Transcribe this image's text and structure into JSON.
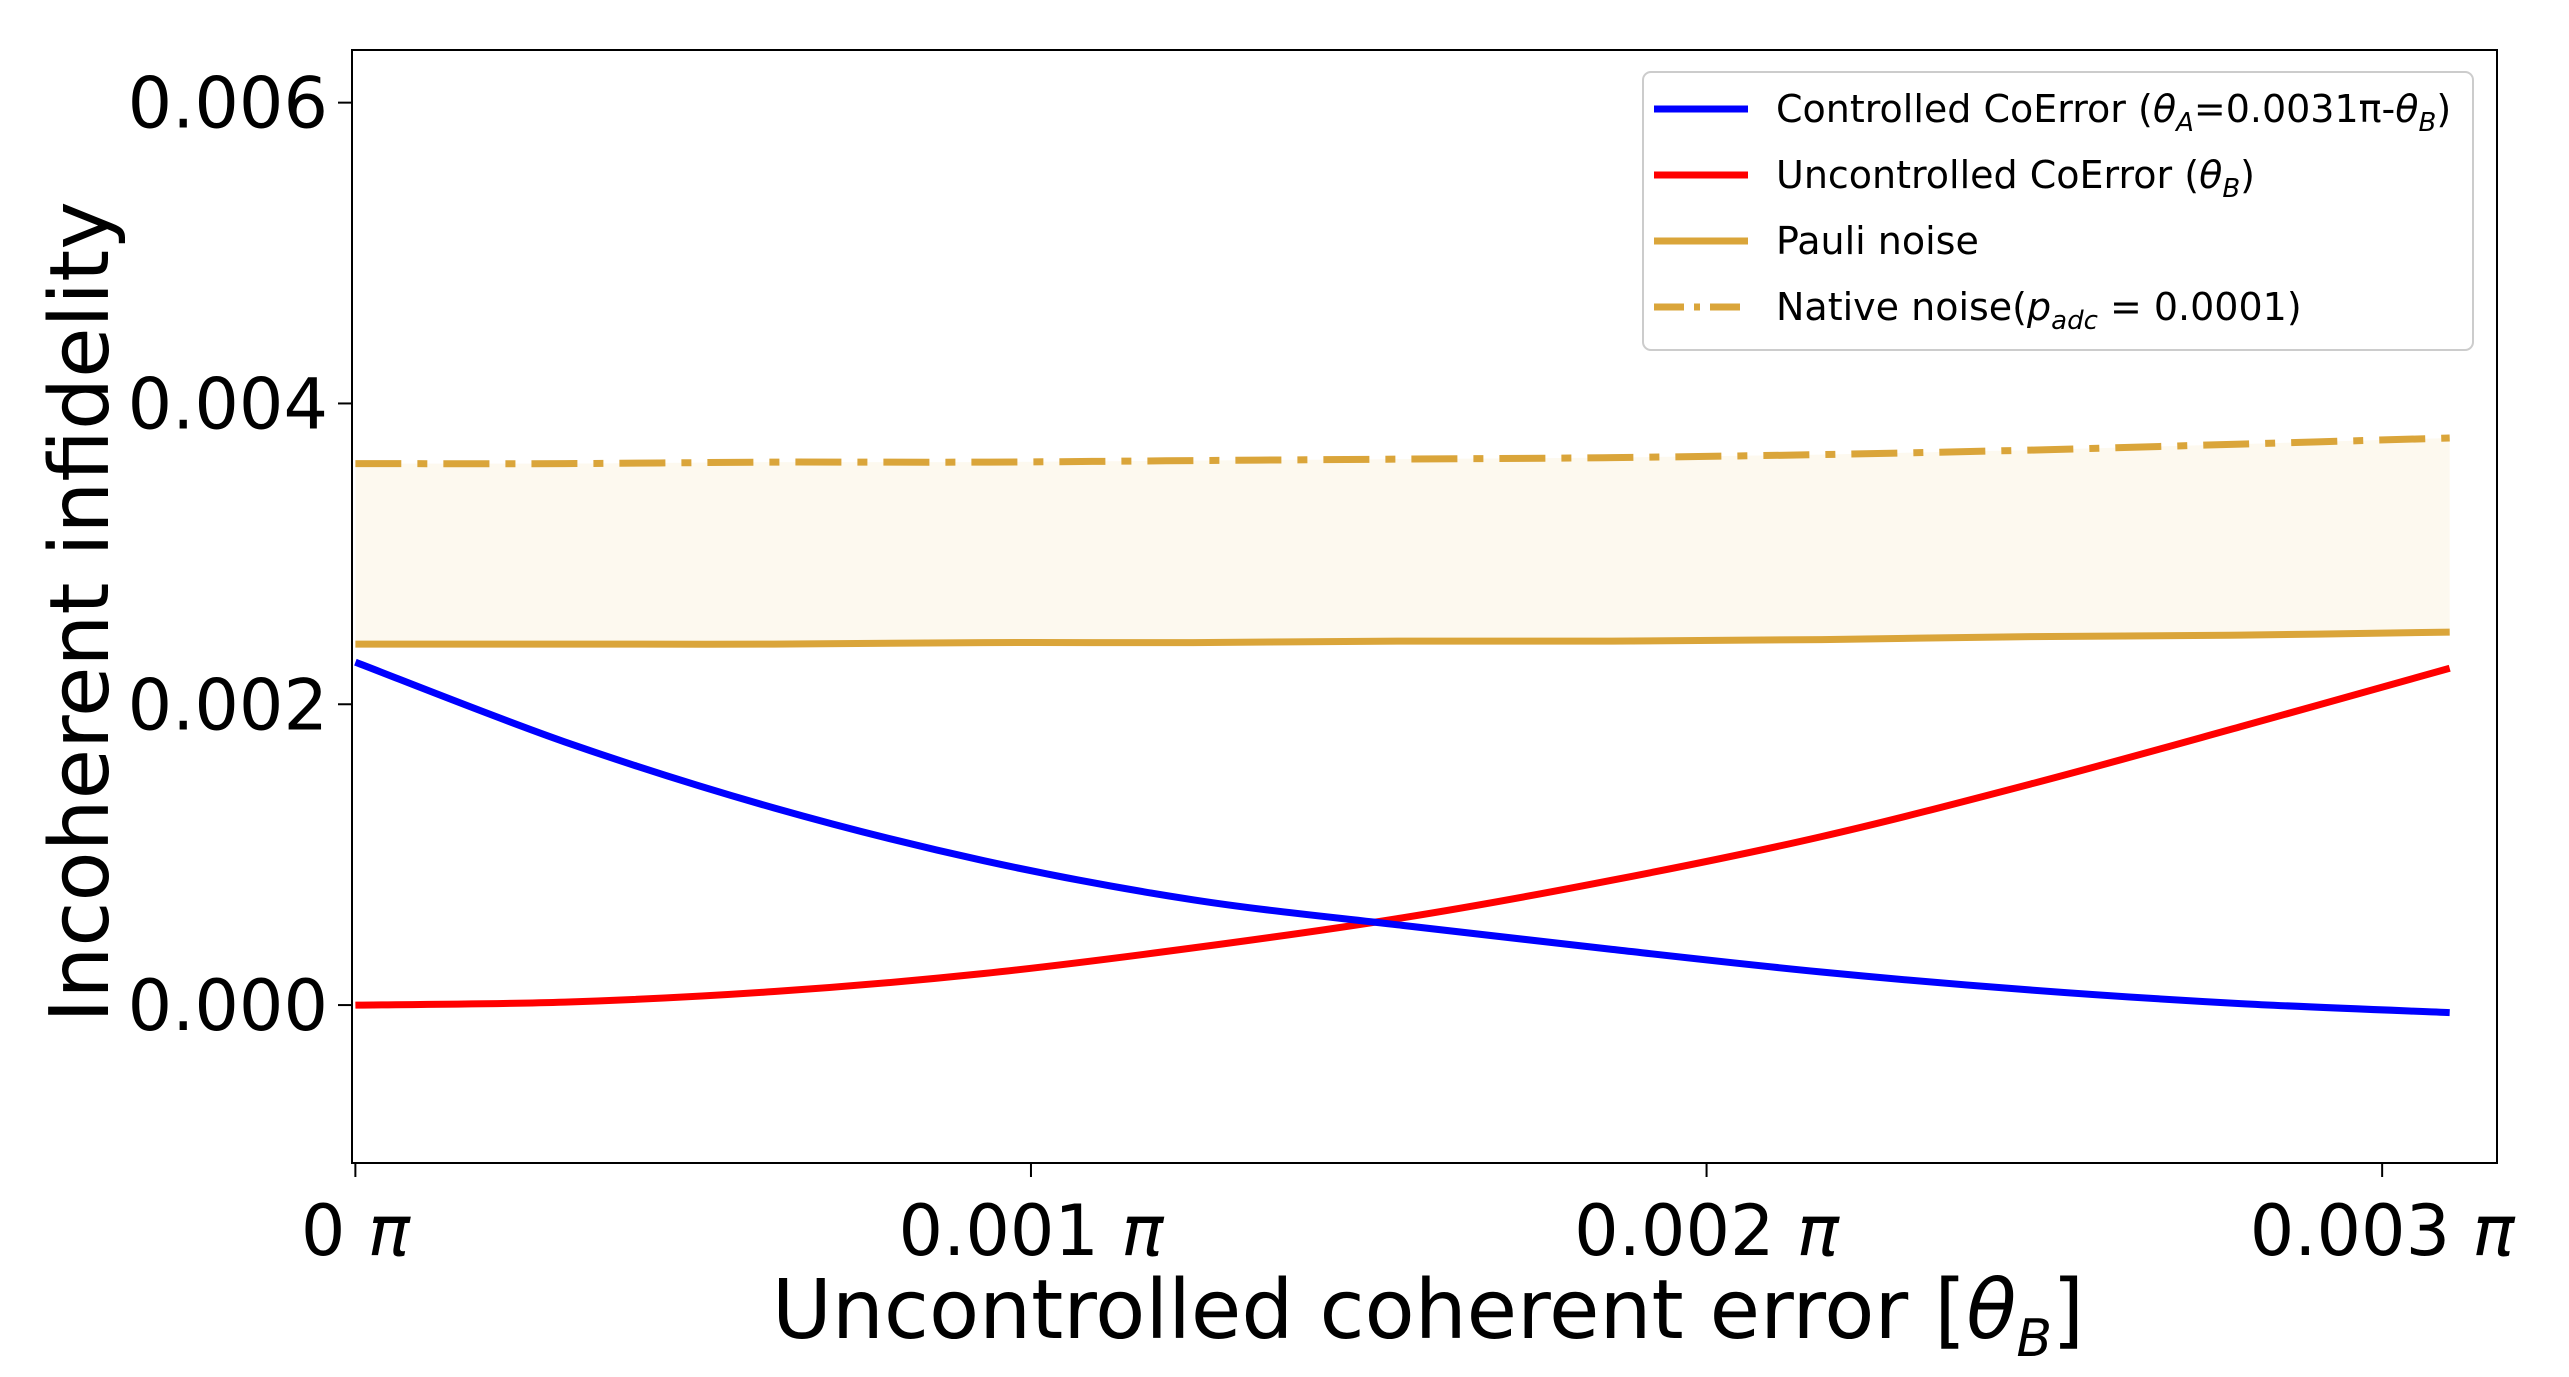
{
  "chart_data": {
    "type": "line",
    "xlabel_main": "Uncontrolled coherent error [",
    "xlabel_sym": "θ",
    "xlabel_sub": "B",
    "xlabel_end": "]",
    "ylabel": "Incoherent infidelity",
    "xlim": [
      -5e-06,
      0.00317
    ],
    "ylim": [
      -0.00105,
      0.00635
    ],
    "xticks": [
      {
        "value": 0,
        "label": "0 π"
      },
      {
        "value": 0.001,
        "label": "0.001 π"
      },
      {
        "value": 0.002,
        "label": "0.002 π"
      },
      {
        "value": 0.003,
        "label": "0.003 π"
      }
    ],
    "yticks": [
      {
        "value": 0,
        "label": "0.000"
      },
      {
        "value": 0.002,
        "label": "0.002"
      },
      {
        "value": 0.004,
        "label": "0.004"
      },
      {
        "value": 0.006,
        "label": "0.006"
      }
    ],
    "grid": false,
    "legend_position": "top-right",
    "x": [
      0,
      0.00031,
      0.00062,
      0.00093,
      0.00124,
      0.00155,
      0.00186,
      0.00217,
      0.00248,
      0.00279,
      0.0031
    ],
    "series": [
      {
        "key": "controlled",
        "legend_parts": [
          "Controlled CoError (",
          "θ",
          "A",
          "=0.0031π-",
          "θ",
          "B",
          ")"
        ],
        "color": "#0000ff",
        "style": "solid",
        "values": [
          0.00228,
          0.00175,
          0.00131,
          0.00096,
          0.0007,
          0.00053,
          0.00037,
          0.00022,
          0.0001,
          1e-05,
          -5e-05
        ]
      },
      {
        "key": "uncontrolled",
        "legend_parts": [
          "Uncontrolled CoError (",
          "θ",
          "B",
          ")"
        ],
        "color": "#ff0000",
        "style": "solid",
        "values": [
          0.0,
          2e-05,
          9e-05,
          0.00021,
          0.00038,
          0.00058,
          0.00083,
          0.00112,
          0.00147,
          0.00185,
          0.00224
        ]
      },
      {
        "key": "pauli",
        "legend_parts": [
          "Pauli noise"
        ],
        "color": "#daa53a",
        "style": "solid",
        "values": [
          0.0024,
          0.0024,
          0.0024,
          0.00241,
          0.00241,
          0.00242,
          0.00242,
          0.00243,
          0.00245,
          0.00246,
          0.00248
        ]
      },
      {
        "key": "native",
        "legend_parts": [
          "Native noise(",
          "p",
          "adc",
          " = 0.0001)"
        ],
        "color": "#daa53a",
        "style": "dashdot",
        "values": [
          0.0036,
          0.0036,
          0.00361,
          0.00361,
          0.00362,
          0.00363,
          0.00364,
          0.00366,
          0.00369,
          0.00373,
          0.00377
        ]
      }
    ],
    "fill_between": {
      "upper": "native",
      "lower": "pauli",
      "color": "#fdf9ef"
    }
  }
}
